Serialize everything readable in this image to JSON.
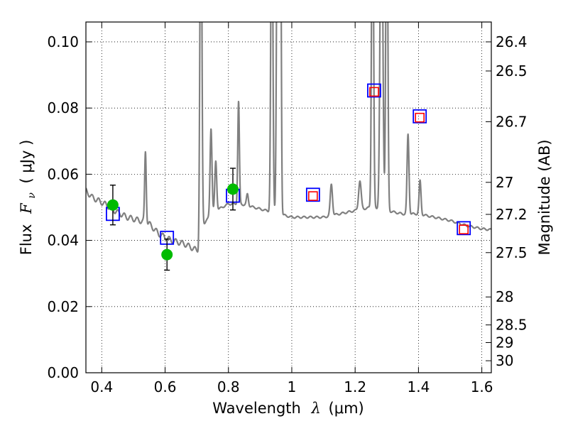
{
  "chart_data": {
    "type": "scatter",
    "xlabel": {
      "prefix": "Wavelength",
      "symbol": "λ",
      "unit": "(μm)"
    },
    "ylabel": {
      "prefix": "Flux",
      "symbol": "F",
      "subscript": "ν",
      "unit": "( μJy )"
    },
    "ylabel_right": "Magnitude (AB)",
    "xlim": [
      0.35,
      1.63
    ],
    "ylim": [
      0.0,
      0.106
    ],
    "grid": true,
    "x_ticks": [
      {
        "value": 0.4,
        "label": "0.4"
      },
      {
        "value": 0.6,
        "label": "0.6"
      },
      {
        "value": 0.8,
        "label": "0.8"
      },
      {
        "value": 1.0,
        "label": "1"
      },
      {
        "value": 1.2,
        "label": "1.2"
      },
      {
        "value": 1.4,
        "label": "1.4"
      },
      {
        "value": 1.6,
        "label": "1.6"
      }
    ],
    "y_ticks": [
      {
        "value": 0.0,
        "label": "0.00"
      },
      {
        "value": 0.02,
        "label": "0.02"
      },
      {
        "value": 0.04,
        "label": "0.04"
      },
      {
        "value": 0.06,
        "label": "0.06"
      },
      {
        "value": 0.08,
        "label": "0.08"
      },
      {
        "value": 0.1,
        "label": "0.10"
      }
    ],
    "magnitude_ticks": [
      {
        "mag": 26.4,
        "label": "26.4"
      },
      {
        "mag": 26.5,
        "label": "26.5"
      },
      {
        "mag": 26.7,
        "label": "26.7"
      },
      {
        "mag": 27.0,
        "label": "27"
      },
      {
        "mag": 27.2,
        "label": "27.2"
      },
      {
        "mag": 27.5,
        "label": "27.5"
      },
      {
        "mag": 28.0,
        "label": "28"
      },
      {
        "mag": 28.5,
        "label": "28.5"
      },
      {
        "mag": 29.0,
        "label": "29"
      },
      {
        "mag": 30.0,
        "label": "30"
      }
    ],
    "series": [
      {
        "name": "model-spectrum",
        "style": "line",
        "color": "#808080",
        "continuum": [
          [
            0.35,
            0.055
          ],
          [
            0.37,
            0.053
          ],
          [
            0.39,
            0.052
          ],
          [
            0.41,
            0.051
          ],
          [
            0.44,
            0.049
          ],
          [
            0.48,
            0.047
          ],
          [
            0.52,
            0.046
          ],
          [
            0.55,
            0.045
          ],
          [
            0.58,
            0.042
          ],
          [
            0.62,
            0.04
          ],
          [
            0.66,
            0.039
          ],
          [
            0.7,
            0.037
          ],
          [
            0.705,
            0.036
          ],
          [
            0.715,
            0.044
          ],
          [
            0.73,
            0.046
          ],
          [
            0.76,
            0.049
          ],
          [
            0.8,
            0.051
          ],
          [
            0.84,
            0.051
          ],
          [
            0.88,
            0.05
          ],
          [
            0.92,
            0.049
          ],
          [
            1.0,
            0.047
          ],
          [
            1.05,
            0.047
          ],
          [
            1.1,
            0.047
          ],
          [
            1.15,
            0.048
          ],
          [
            1.2,
            0.049
          ],
          [
            1.25,
            0.05
          ],
          [
            1.3,
            0.049
          ],
          [
            1.35,
            0.048
          ],
          [
            1.4,
            0.048
          ],
          [
            1.45,
            0.047
          ],
          [
            1.5,
            0.046
          ],
          [
            1.55,
            0.0445
          ],
          [
            1.6,
            0.0435
          ],
          [
            1.63,
            0.0432
          ]
        ],
        "lines": [
          {
            "x": 0.538,
            "peak": 0.067,
            "width": 0.0025
          },
          {
            "x": 0.713,
            "peak": 0.16,
            "width": 0.003
          },
          {
            "x": 0.745,
            "peak": 0.074,
            "width": 0.003
          },
          {
            "x": 0.76,
            "peak": 0.064,
            "width": 0.003
          },
          {
            "x": 0.832,
            "peak": 0.082,
            "width": 0.0025
          },
          {
            "x": 0.86,
            "peak": 0.054,
            "width": 0.003
          },
          {
            "x": 0.937,
            "peak": 0.16,
            "width": 0.003
          },
          {
            "x": 0.955,
            "peak": 0.16,
            "width": 0.003
          },
          {
            "x": 0.964,
            "peak": 0.16,
            "width": 0.0025
          },
          {
            "x": 1.125,
            "peak": 0.057,
            "width": 0.0035
          },
          {
            "x": 1.215,
            "peak": 0.058,
            "width": 0.004
          },
          {
            "x": 1.255,
            "peak": 0.16,
            "width": 0.003
          },
          {
            "x": 1.283,
            "peak": 0.16,
            "width": 0.004
          },
          {
            "x": 1.3,
            "peak": 0.16,
            "width": 0.003
          },
          {
            "x": 1.367,
            "peak": 0.072,
            "width": 0.003
          },
          {
            "x": 1.405,
            "peak": 0.058,
            "width": 0.003
          }
        ]
      },
      {
        "name": "model-photometry",
        "style": "open-square",
        "color": "#0000ff",
        "points": [
          {
            "x": 0.435,
            "y": 0.048
          },
          {
            "x": 0.606,
            "y": 0.0408
          },
          {
            "x": 0.814,
            "y": 0.0535
          },
          {
            "x": 1.067,
            "y": 0.0538
          },
          {
            "x": 1.26,
            "y": 0.0853
          },
          {
            "x": 1.404,
            "y": 0.0775
          },
          {
            "x": 1.543,
            "y": 0.0437
          }
        ]
      },
      {
        "name": "synthetic-photometry",
        "style": "open-square-small",
        "color": "#ff0000",
        "points": [
          {
            "x": 1.067,
            "y": 0.0534
          },
          {
            "x": 1.26,
            "y": 0.0849
          },
          {
            "x": 1.404,
            "y": 0.0771
          },
          {
            "x": 1.543,
            "y": 0.0433
          }
        ]
      },
      {
        "name": "observed-photometry",
        "style": "filled-circle",
        "color": "#00bb00",
        "points": [
          {
            "x": 0.435,
            "y": 0.0507,
            "err": 0.006
          },
          {
            "x": 0.606,
            "y": 0.0357,
            "err": 0.0047
          },
          {
            "x": 0.814,
            "y": 0.0555,
            "err": 0.0063
          }
        ]
      }
    ]
  }
}
